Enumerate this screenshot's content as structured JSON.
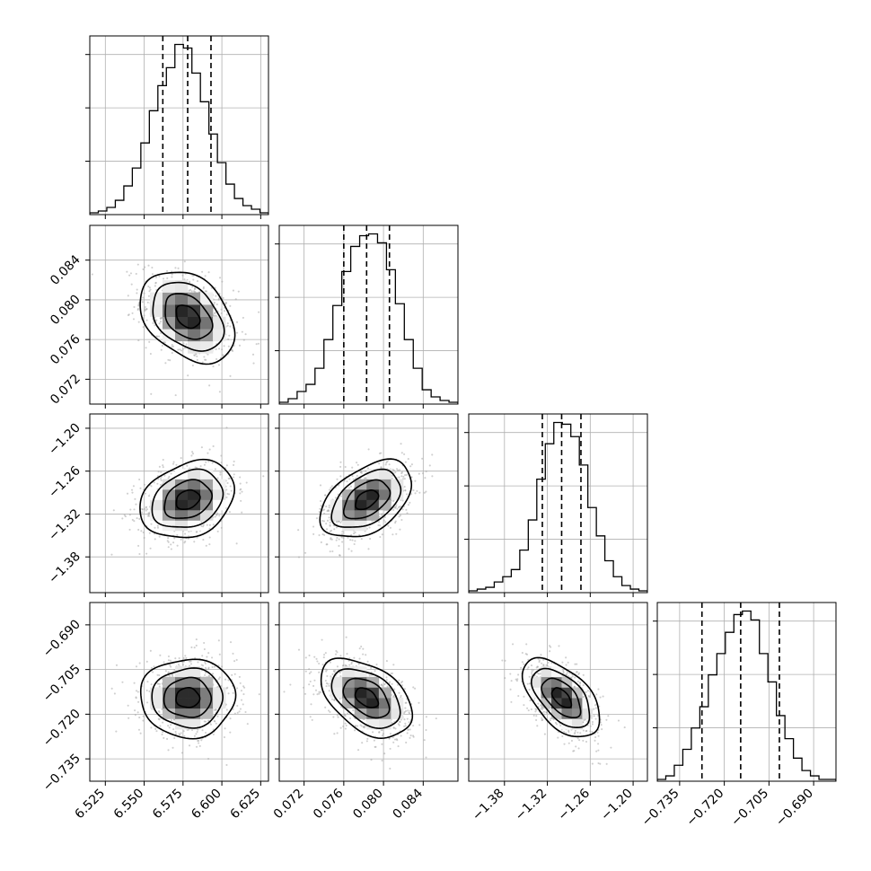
{
  "chart_data": {
    "type": "corner",
    "parameters": [
      {
        "id": "p1",
        "range": [
          6.515,
          6.63
        ],
        "ticks": [
          "6.525",
          "6.550",
          "6.575",
          "6.600",
          "6.625"
        ],
        "quantiles": [
          6.562,
          6.578,
          6.593
        ],
        "mean": 6.578,
        "sd": 0.0152
      },
      {
        "id": "p2",
        "range": [
          0.0695,
          0.0875
        ],
        "ticks": [
          "0.072",
          "0.076",
          "0.080",
          "0.084"
        ],
        "quantiles": [
          0.076,
          0.0783,
          0.0806
        ],
        "mean": 0.0783,
        "sd": 0.0023
      },
      {
        "id": "p3",
        "range": [
          -1.43,
          -1.18
        ],
        "ticks": [
          "−1.38",
          "−1.32",
          "−1.26",
          "−1.20"
        ],
        "quantiles": [
          -1.327,
          -1.3,
          -1.273
        ],
        "mean": -1.3,
        "sd": 0.027
      },
      {
        "id": "p4",
        "range": [
          -0.7425,
          -0.6825
        ],
        "ticks": [
          "−0.735",
          "−0.720",
          "−0.705",
          "−0.690"
        ],
        "quantiles": [
          -0.7275,
          -0.7145,
          -0.7015
        ],
        "mean": -0.7145,
        "sd": 0.0066
      }
    ],
    "correlations": [
      {
        "pair": [
          0,
          1
        ],
        "r": -0.35
      },
      {
        "pair": [
          0,
          2
        ],
        "r": 0.25
      },
      {
        "pair": [
          0,
          3
        ],
        "r": 0.0
      },
      {
        "pair": [
          1,
          2
        ],
        "r": 0.45
      },
      {
        "pair": [
          1,
          3
        ],
        "r": -0.45
      },
      {
        "pair": [
          2,
          3
        ],
        "r": -0.55
      }
    ],
    "histograms": [
      {
        "param": 0,
        "counts": [
          1,
          2,
          4,
          8,
          16,
          26,
          40,
          58,
          72,
          82,
          95,
          93,
          79,
          63,
          45,
          29,
          17,
          9,
          5,
          3,
          1
        ]
      },
      {
        "param": 1,
        "counts": [
          1,
          3,
          7,
          11,
          20,
          36,
          55,
          74,
          88,
          94,
          95,
          90,
          75,
          56,
          36,
          20,
          8,
          4,
          2,
          1
        ]
      },
      {
        "param": 2,
        "counts": [
          1,
          2,
          3,
          6,
          9,
          13,
          24,
          41,
          64,
          84,
          96,
          95,
          88,
          72,
          48,
          32,
          18,
          9,
          4,
          2,
          1
        ]
      },
      {
        "param": 3,
        "counts": [
          1,
          3,
          9,
          18,
          30,
          42,
          60,
          72,
          84,
          94,
          96,
          91,
          72,
          56,
          37,
          24,
          13,
          6,
          3,
          1,
          1
        ]
      }
    ],
    "contour_levels": [
      0.5,
      1.0,
      1.5,
      2.0
    ],
    "quantile_levels": [
      0.16,
      0.5,
      0.84
    ],
    "grid": true,
    "title": "",
    "xlabel": "",
    "ylabel": ""
  }
}
